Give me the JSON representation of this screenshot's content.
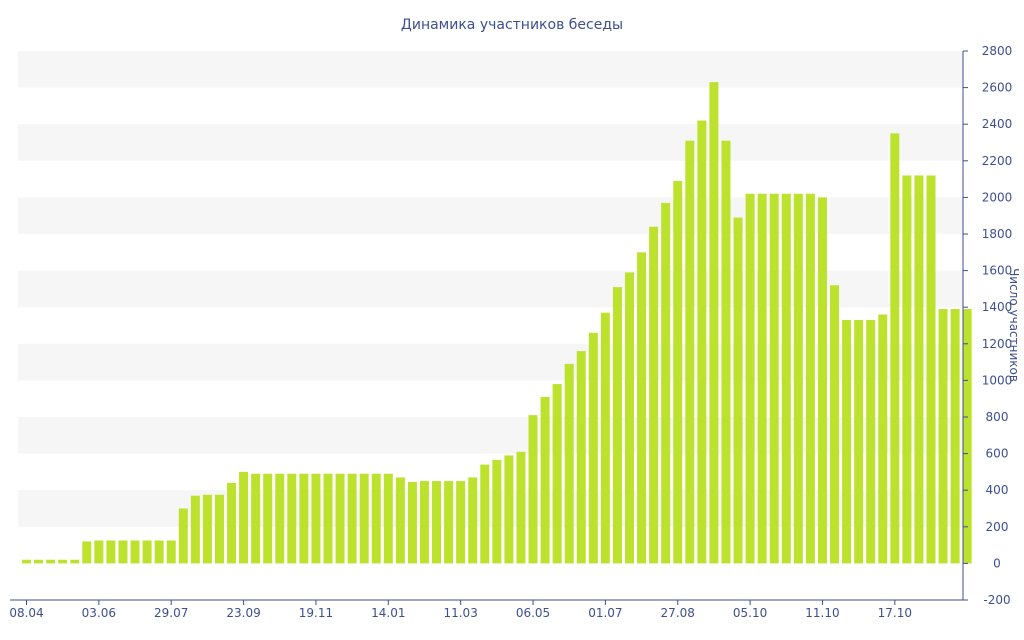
{
  "chart_data": {
    "type": "bar",
    "title": "Динамика участников беседы",
    "xlabel": "",
    "ylabel": "Число участников",
    "ylim": [
      -200,
      2800
    ],
    "yticks": [
      -200,
      0,
      200,
      400,
      600,
      800,
      1000,
      1200,
      1400,
      1600,
      1800,
      2000,
      2200,
      2400,
      2600,
      2800
    ],
    "xtick_labels": [
      "08.04",
      "03.06",
      "29.07",
      "23.09",
      "19.11",
      "14.01",
      "11.03",
      "06.05",
      "01.07",
      "27.08",
      "05.10",
      "11.10",
      "17.10"
    ],
    "xtick_bar_index": [
      0,
      6,
      12,
      18,
      24,
      30,
      36,
      42,
      48,
      54,
      60,
      66,
      72
    ],
    "values": [
      20,
      20,
      20,
      20,
      20,
      120,
      125,
      125,
      125,
      125,
      125,
      125,
      125,
      300,
      370,
      375,
      375,
      440,
      500,
      490,
      490,
      490,
      490,
      490,
      490,
      490,
      490,
      490,
      490,
      490,
      490,
      470,
      445,
      450,
      450,
      450,
      450,
      470,
      540,
      565,
      590,
      610,
      810,
      910,
      980,
      1090,
      1160,
      1260,
      1370,
      1510,
      1590,
      1700,
      1840,
      1970,
      2090,
      2310,
      2420,
      2630,
      2310,
      1890,
      2020,
      2020,
      2020,
      2020,
      2020,
      2020,
      2000,
      1520,
      1330,
      1330,
      1330,
      1360,
      2350,
      2120,
      2120,
      2120,
      1390,
      1390,
      1390
    ],
    "bar_color": "#bce22d",
    "band_color": "#f6f6f6",
    "text_color": "#3d4f8f",
    "axis_color": "#3d4f8f",
    "grid": "alternating bands",
    "y_axis_side": "right",
    "legend": "none"
  }
}
